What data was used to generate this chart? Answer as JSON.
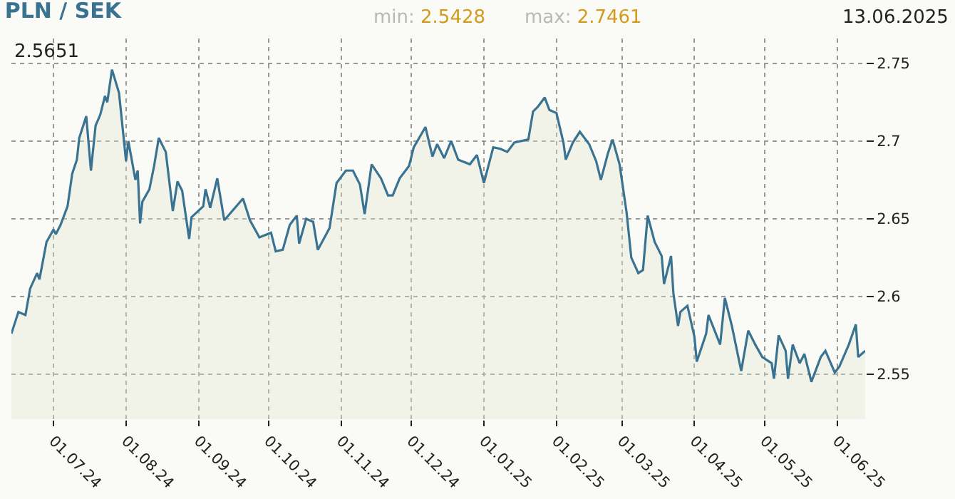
{
  "chart_data": {
    "type": "area",
    "title": "PLN / SEK",
    "annotations": [
      "min: 2.5428",
      "max: 2.7461",
      "13.06.2025",
      "2.5651"
    ],
    "x": [
      "2024-06-13",
      "2024-06-16",
      "2024-06-19",
      "2024-06-21",
      "2024-06-24",
      "2024-06-25",
      "2024-06-28",
      "2024-07-01",
      "2024-07-02",
      "2024-07-04",
      "2024-07-07",
      "2024-07-09",
      "2024-07-11",
      "2024-07-12",
      "2024-07-15",
      "2024-07-17",
      "2024-07-19",
      "2024-07-21",
      "2024-07-23",
      "2024-07-24",
      "2024-07-26",
      "2024-07-29",
      "2024-07-31",
      "2024-08-01",
      "2024-08-02",
      "2024-08-05",
      "2024-08-06",
      "2024-08-07",
      "2024-08-08",
      "2024-08-11",
      "2024-08-13",
      "2024-08-15",
      "2024-08-18",
      "2024-08-21",
      "2024-08-23",
      "2024-08-25",
      "2024-08-28",
      "2024-08-29",
      "2024-09-03",
      "2024-09-04",
      "2024-09-06",
      "2024-09-09",
      "2024-09-12",
      "2024-09-20",
      "2024-09-23",
      "2024-09-27",
      "2024-10-02",
      "2024-10-04",
      "2024-10-07",
      "2024-10-10",
      "2024-10-13",
      "2024-10-14",
      "2024-10-17",
      "2024-10-20",
      "2024-10-22",
      "2024-10-27",
      "2024-10-30",
      "2024-11-03",
      "2024-11-06",
      "2024-11-09",
      "2024-11-11",
      "2024-11-14",
      "2024-11-18",
      "2024-11-21",
      "2024-11-23",
      "2024-11-26",
      "2024-11-30",
      "2024-12-02",
      "2024-12-07",
      "2024-12-10",
      "2024-12-12",
      "2024-12-15",
      "2024-12-18",
      "2024-12-21",
      "2024-12-26",
      "2024-12-29",
      "2025-01-01",
      "2025-01-05",
      "2025-01-08",
      "2025-01-11",
      "2025-01-14",
      "2025-01-20",
      "2025-01-22",
      "2025-01-24",
      "2025-01-27",
      "2025-01-29",
      "2025-02-01",
      "2025-02-04",
      "2025-02-05",
      "2025-02-08",
      "2025-02-11",
      "2025-02-15",
      "2025-02-18",
      "2025-02-20",
      "2025-02-23",
      "2025-02-25",
      "2025-02-28",
      "2025-03-03",
      "2025-03-05",
      "2025-03-08",
      "2025-03-10",
      "2025-03-12",
      "2025-03-15",
      "2025-03-18",
      "2025-03-19",
      "2025-03-22",
      "2025-03-23",
      "2025-03-25",
      "2025-03-26",
      "2025-03-29",
      "2025-04-01",
      "2025-04-02",
      "2025-04-06",
      "2025-04-07",
      "2025-04-12",
      "2025-04-14",
      "2025-04-17",
      "2025-04-21",
      "2025-04-24",
      "2025-04-27",
      "2025-04-30",
      "2025-05-04",
      "2025-05-05",
      "2025-05-07",
      "2025-05-10",
      "2025-05-11",
      "2025-05-13",
      "2025-05-16",
      "2025-05-18",
      "2025-05-21",
      "2025-05-25",
      "2025-05-27",
      "2025-05-31",
      "2025-06-02",
      "2025-06-06",
      "2025-06-09",
      "2025-06-10",
      "2025-06-13"
    ],
    "series": [
      {
        "color": "#3a7391",
        "values": [
          2.576,
          2.59,
          2.588,
          2.605,
          2.615,
          2.611,
          2.635,
          2.643,
          2.64,
          2.646,
          2.658,
          2.679,
          2.688,
          2.702,
          2.716,
          2.681,
          2.71,
          2.717,
          2.729,
          2.725,
          2.746,
          2.731,
          2.702,
          2.687,
          2.7,
          2.675,
          2.681,
          2.647,
          2.661,
          2.669,
          2.684,
          2.702,
          2.693,
          2.655,
          2.674,
          2.668,
          2.637,
          2.651,
          2.658,
          2.669,
          2.657,
          2.676,
          2.649,
          2.663,
          2.649,
          2.638,
          2.641,
          2.629,
          2.63,
          2.646,
          2.652,
          2.634,
          2.65,
          2.648,
          2.63,
          2.644,
          2.673,
          2.681,
          2.681,
          2.672,
          2.653,
          2.685,
          2.676,
          2.665,
          2.665,
          2.676,
          2.684,
          2.696,
          2.709,
          2.69,
          2.698,
          2.689,
          2.7,
          2.688,
          2.685,
          2.691,
          2.673,
          2.696,
          2.695,
          2.693,
          2.699,
          2.701,
          2.719,
          2.722,
          2.728,
          2.72,
          2.718,
          2.699,
          2.688,
          2.699,
          2.706,
          2.698,
          2.687,
          2.675,
          2.692,
          2.701,
          2.685,
          2.654,
          2.625,
          2.615,
          2.617,
          2.652,
          2.635,
          2.626,
          2.608,
          2.626,
          2.602,
          2.581,
          2.59,
          2.594,
          2.574,
          2.558,
          2.576,
          2.588,
          2.569,
          2.599,
          2.581,
          2.552,
          2.578,
          2.569,
          2.561,
          2.557,
          2.547,
          2.575,
          2.565,
          2.547,
          2.569,
          2.557,
          2.563,
          2.545,
          2.561,
          2.565,
          2.551,
          2.555,
          2.569,
          2.582,
          2.561,
          2.565
        ]
      }
    ],
    "xlim": [
      "2024-06-13",
      "2025-06-13"
    ],
    "xticks": [
      {
        "value": "2024-07-01",
        "label": "01.07.24"
      },
      {
        "value": "2024-08-01",
        "label": "01.08.24"
      },
      {
        "value": "2024-09-01",
        "label": "01.09.24"
      },
      {
        "value": "2024-10-01",
        "label": "01.10.24"
      },
      {
        "value": "2024-11-01",
        "label": "01.11.24"
      },
      {
        "value": "2024-12-01",
        "label": "01.12.24"
      },
      {
        "value": "2025-01-01",
        "label": "01.01.25"
      },
      {
        "value": "2025-02-01",
        "label": "01.02.25"
      },
      {
        "value": "2025-03-01",
        "label": "01.03.25"
      },
      {
        "value": "2025-04-01",
        "label": "01.04.25"
      },
      {
        "value": "2025-05-01",
        "label": "01.05.25"
      },
      {
        "value": "2025-06-01",
        "label": "01.06.25"
      }
    ],
    "ylim": [
      2.521,
      2.766
    ],
    "yticks": [
      {
        "value": 2.55,
        "label": "2.55"
      },
      {
        "value": 2.6,
        "label": "2.6"
      },
      {
        "value": 2.65,
        "label": "2.65"
      },
      {
        "value": 2.7,
        "label": "2.7"
      },
      {
        "value": 2.75,
        "label": "2.75"
      }
    ],
    "grid": true,
    "marker": "none",
    "line_style": "solid"
  }
}
